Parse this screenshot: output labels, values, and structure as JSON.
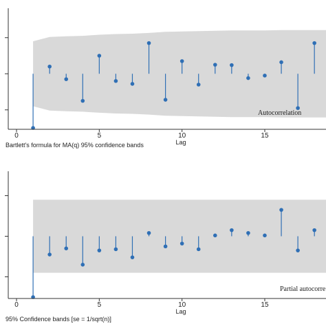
{
  "colors": {
    "band": "#d9d9d9",
    "stem": "#2f6fb5",
    "axis": "#333333"
  },
  "chart_data": [
    {
      "type": "stem",
      "annotation": "Autocorrelation",
      "xlabel": "Lag",
      "note": "Bartlett's formula for MA(q) 95% confidence bands",
      "xticks": [
        0,
        5,
        10,
        15
      ],
      "xlim": [
        -0.5,
        18.7
      ],
      "ylim": [
        -0.15,
        0.17
      ],
      "yticks": [
        -0.1,
        0.0,
        0.1
      ],
      "lags": [
        1,
        2,
        3,
        4,
        5,
        6,
        7,
        8,
        9,
        10,
        11,
        12,
        13,
        14,
        15,
        16,
        17,
        18
      ],
      "values": [
        -0.15,
        0.02,
        -0.015,
        -0.075,
        0.05,
        -0.02,
        -0.028,
        0.085,
        -0.072,
        0.035,
        -0.03,
        0.025,
        0.024,
        -0.012,
        -0.005,
        0.032,
        -0.095,
        0.085
      ],
      "band_upper": [
        0.09,
        0.102,
        0.104,
        0.105,
        0.108,
        0.11,
        0.111,
        0.113,
        0.116,
        0.117,
        0.118,
        0.119,
        0.12,
        0.12,
        0.12,
        0.121,
        0.121,
        0.121
      ],
      "band_lower": [
        -0.09,
        -0.102,
        -0.104,
        -0.105,
        -0.108,
        -0.11,
        -0.111,
        -0.113,
        -0.116,
        -0.117,
        -0.118,
        -0.119,
        -0.12,
        -0.12,
        -0.12,
        -0.121,
        -0.121,
        -0.121
      ]
    },
    {
      "type": "stem",
      "annotation": "Partial autocorre",
      "xlabel": "Lag",
      "note": "95% Confidence bands [se = 1/sqrt(n)]",
      "xticks": [
        0,
        5,
        10,
        15
      ],
      "xlim": [
        -0.5,
        18.7
      ],
      "ylim": [
        -0.15,
        0.15
      ],
      "yticks": [
        -0.1,
        0.0,
        0.1
      ],
      "lags": [
        1,
        2,
        3,
        4,
        5,
        6,
        7,
        8,
        9,
        10,
        11,
        12,
        13,
        14,
        15,
        16,
        17,
        18
      ],
      "values": [
        -0.15,
        -0.045,
        -0.03,
        -0.07,
        -0.035,
        -0.032,
        -0.052,
        0.008,
        -0.025,
        -0.018,
        -0.032,
        0.002,
        0.015,
        0.008,
        0.002,
        0.065,
        -0.035,
        0.015
      ],
      "band_upper": [
        0.09,
        0.09,
        0.09,
        0.09,
        0.09,
        0.09,
        0.09,
        0.09,
        0.09,
        0.09,
        0.09,
        0.09,
        0.09,
        0.09,
        0.09,
        0.09,
        0.09,
        0.09
      ],
      "band_lower": [
        -0.09,
        -0.09,
        -0.09,
        -0.09,
        -0.09,
        -0.09,
        -0.09,
        -0.09,
        -0.09,
        -0.09,
        -0.09,
        -0.09,
        -0.09,
        -0.09,
        -0.09,
        -0.09,
        -0.09,
        -0.09
      ]
    }
  ]
}
